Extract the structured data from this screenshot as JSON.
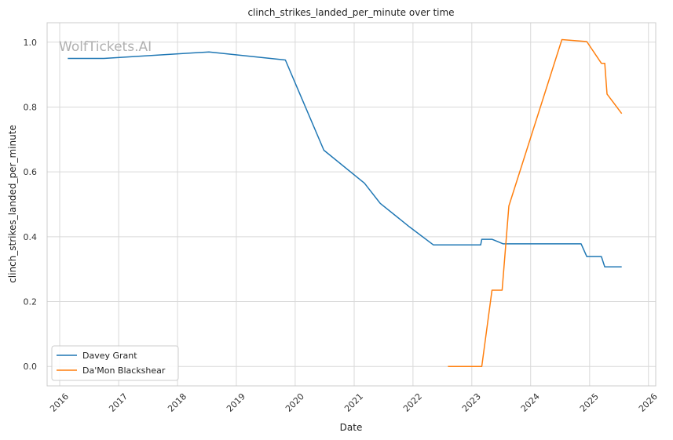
{
  "chart_data": {
    "type": "line",
    "title": "clinch_strikes_landed_per_minute over time",
    "xlabel": "Date",
    "ylabel": "clinch_strikes_landed_per_minute",
    "watermark": "WolfTickets.AI",
    "x_ticks": [
      "2016",
      "2017",
      "2018",
      "2019",
      "2020",
      "2021",
      "2022",
      "2023",
      "2024",
      "2025",
      "2026"
    ],
    "y_ticks": [
      "0.0",
      "0.2",
      "0.4",
      "0.6",
      "0.8",
      "1.0"
    ],
    "xlim": [
      "2015-10-15",
      "2026-02-15"
    ],
    "ylim": [
      -0.06,
      1.06
    ],
    "grid": true,
    "legend_position": "lower-left",
    "series": [
      {
        "name": "Davey Grant",
        "color": "#1f77b4",
        "points": [
          [
            "2016-02-20",
            0.95
          ],
          [
            "2016-10-01",
            0.95
          ],
          [
            "2018-07-15",
            0.97
          ],
          [
            "2019-11-01",
            0.945
          ],
          [
            "2020-06-27",
            0.667
          ],
          [
            "2021-03-06",
            0.565
          ],
          [
            "2021-06-12",
            0.503
          ],
          [
            "2021-12-11",
            0.43
          ],
          [
            "2022-05-07",
            0.375
          ],
          [
            "2023-02-25",
            0.375
          ],
          [
            "2023-03-04",
            0.392
          ],
          [
            "2023-05-06",
            0.392
          ],
          [
            "2023-07-15",
            0.378
          ],
          [
            "2024-11-09",
            0.378
          ],
          [
            "2024-12-14",
            0.339
          ],
          [
            "2025-03-15",
            0.339
          ],
          [
            "2025-04-05",
            0.307
          ],
          [
            "2025-07-19",
            0.307
          ]
        ]
      },
      {
        "name": "Da'Mon Blackshear",
        "color": "#ff7f0e",
        "points": [
          [
            "2022-08-06",
            0.0
          ],
          [
            "2023-03-04",
            0.0
          ],
          [
            "2023-05-06",
            0.235
          ],
          [
            "2023-07-08",
            0.235
          ],
          [
            "2023-08-19",
            0.495
          ],
          [
            "2024-07-13",
            1.008
          ],
          [
            "2024-12-14",
            1.002
          ],
          [
            "2025-03-15",
            0.935
          ],
          [
            "2025-04-05",
            0.935
          ],
          [
            "2025-04-19",
            0.84
          ],
          [
            "2025-07-19",
            0.78
          ]
        ]
      }
    ]
  }
}
